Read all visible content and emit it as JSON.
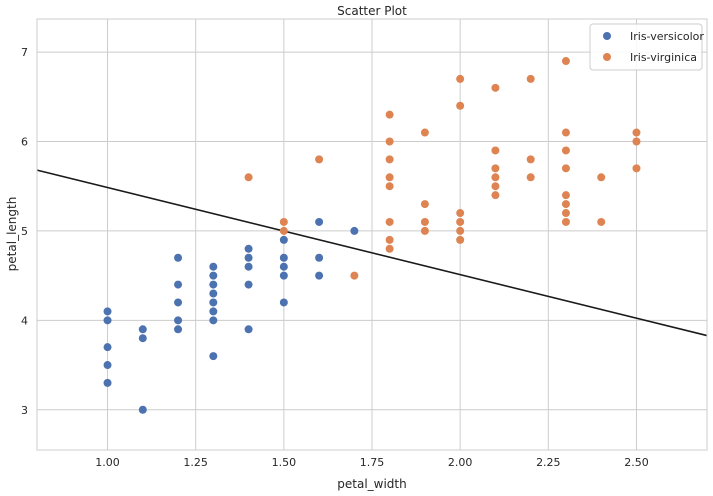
{
  "chart_data": {
    "type": "scatter",
    "title": "Scatter Plot",
    "xlabel": "petal_width",
    "ylabel": "petal_length",
    "xlim": [
      0.8,
      2.7
    ],
    "ylim": [
      2.55,
      7.37
    ],
    "xticks": [
      "1.00",
      "1.25",
      "1.50",
      "1.75",
      "2.00",
      "2.25",
      "2.50"
    ],
    "yticks": [
      "3",
      "4",
      "5",
      "6",
      "7"
    ],
    "grid": true,
    "legend_position": "top-right",
    "series": [
      {
        "name": "Iris-versicolor",
        "color": "#4c72b0",
        "points": [
          [
            1.0,
            3.3
          ],
          [
            1.0,
            3.5
          ],
          [
            1.0,
            3.7
          ],
          [
            1.0,
            4.0
          ],
          [
            1.0,
            4.1
          ],
          [
            1.1,
            3.0
          ],
          [
            1.1,
            3.8
          ],
          [
            1.1,
            3.9
          ],
          [
            1.2,
            3.9
          ],
          [
            1.2,
            4.0
          ],
          [
            1.2,
            4.2
          ],
          [
            1.2,
            4.4
          ],
          [
            1.2,
            4.7
          ],
          [
            1.3,
            3.6
          ],
          [
            1.3,
            4.0
          ],
          [
            1.3,
            4.1
          ],
          [
            1.3,
            4.2
          ],
          [
            1.3,
            4.3
          ],
          [
            1.3,
            4.4
          ],
          [
            1.3,
            4.5
          ],
          [
            1.3,
            4.6
          ],
          [
            1.4,
            3.9
          ],
          [
            1.4,
            4.4
          ],
          [
            1.4,
            4.6
          ],
          [
            1.4,
            4.7
          ],
          [
            1.4,
            4.8
          ],
          [
            1.5,
            4.2
          ],
          [
            1.5,
            4.5
          ],
          [
            1.5,
            4.6
          ],
          [
            1.5,
            4.7
          ],
          [
            1.5,
            4.9
          ],
          [
            1.6,
            4.5
          ],
          [
            1.6,
            4.7
          ],
          [
            1.6,
            5.1
          ],
          [
            1.7,
            5.0
          ]
        ]
      },
      {
        "name": "Iris-virginica",
        "color": "#dd8452",
        "points": [
          [
            1.4,
            5.6
          ],
          [
            1.5,
            5.0
          ],
          [
            1.5,
            5.1
          ],
          [
            1.6,
            5.8
          ],
          [
            1.7,
            4.5
          ],
          [
            1.8,
            4.8
          ],
          [
            1.8,
            4.9
          ],
          [
            1.8,
            5.1
          ],
          [
            1.8,
            5.5
          ],
          [
            1.8,
            5.6
          ],
          [
            1.8,
            5.8
          ],
          [
            1.8,
            6.0
          ],
          [
            1.8,
            6.3
          ],
          [
            1.9,
            5.0
          ],
          [
            1.9,
            5.1
          ],
          [
            1.9,
            5.3
          ],
          [
            1.9,
            6.1
          ],
          [
            2.0,
            4.9
          ],
          [
            2.0,
            5.0
          ],
          [
            2.0,
            5.1
          ],
          [
            2.0,
            5.2
          ],
          [
            2.0,
            6.4
          ],
          [
            2.0,
            6.7
          ],
          [
            2.1,
            5.4
          ],
          [
            2.1,
            5.5
          ],
          [
            2.1,
            5.6
          ],
          [
            2.1,
            5.7
          ],
          [
            2.1,
            5.9
          ],
          [
            2.1,
            6.6
          ],
          [
            2.2,
            5.6
          ],
          [
            2.2,
            5.8
          ],
          [
            2.2,
            6.7
          ],
          [
            2.3,
            5.1
          ],
          [
            2.3,
            5.2
          ],
          [
            2.3,
            5.3
          ],
          [
            2.3,
            5.4
          ],
          [
            2.3,
            5.7
          ],
          [
            2.3,
            5.9
          ],
          [
            2.3,
            6.1
          ],
          [
            2.3,
            6.9
          ],
          [
            2.4,
            5.1
          ],
          [
            2.4,
            5.6
          ],
          [
            2.5,
            5.7
          ],
          [
            2.5,
            6.0
          ],
          [
            2.5,
            6.1
          ]
        ]
      }
    ],
    "line": {
      "color": "#1a1a1a",
      "points": [
        [
          0.8,
          5.68
        ],
        [
          2.7,
          3.83
        ]
      ]
    }
  }
}
